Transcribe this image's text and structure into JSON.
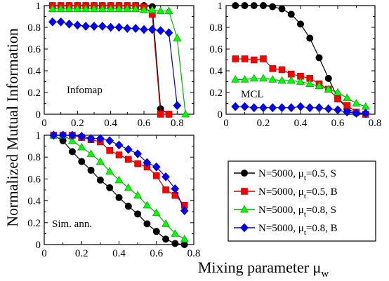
{
  "figure": {
    "ylabel": "Normalized Mutual Information",
    "xlabel_main": "Mixing parameter μ",
    "xlabel_sub": "w"
  },
  "colors": {
    "S1": "#000000",
    "B1": "#ff0000",
    "S2": "#00ff00",
    "B2": "#0000ff",
    "B1_stroke": "#cc0000",
    "S2_stroke": "#00b000",
    "B2_stroke": "#0000cc"
  },
  "legend": [
    {
      "id": "S1",
      "prefix": "N=5000,  μ",
      "sub": "t",
      "suffix": "=0.5, S",
      "marker": "circle"
    },
    {
      "id": "B1",
      "prefix": "N=5000,  μ",
      "sub": "t",
      "suffix": "=0.5, B",
      "marker": "square"
    },
    {
      "id": "S2",
      "prefix": "N=5000,  μ",
      "sub": "t",
      "suffix": "=0.8, S",
      "marker": "triangle"
    },
    {
      "id": "B2",
      "prefix": "N=5000,  μ",
      "sub": "t",
      "suffix": "=0.8, B",
      "marker": "diamond"
    }
  ],
  "chart_data": [
    {
      "type": "line",
      "panel": "infomap",
      "annotation": "Infomap",
      "xlim": [
        0,
        0.9
      ],
      "ylim": [
        0,
        1
      ],
      "xticks": [
        "0",
        "0.2",
        "0.4",
        "0.6",
        "0.8"
      ],
      "xtick_values": [
        0,
        0.2,
        0.4,
        0.6,
        0.8
      ],
      "yticks": [
        "0",
        "0.2",
        "0.4",
        "0.6",
        "0.8",
        "1"
      ],
      "ytick_values": [
        0,
        0.2,
        0.4,
        0.6,
        0.8,
        1
      ],
      "series": [
        {
          "id": "S1",
          "x": [
            0.05,
            0.1,
            0.15,
            0.2,
            0.25,
            0.3,
            0.35,
            0.4,
            0.45,
            0.5,
            0.55,
            0.6,
            0.65,
            0.7,
            0.75
          ],
          "y": [
            1,
            1,
            1,
            1,
            1,
            1,
            1,
            1,
            1,
            1,
            1,
            1,
            0.99,
            0.05,
            0.0
          ]
        },
        {
          "id": "B1",
          "x": [
            0.05,
            0.1,
            0.15,
            0.2,
            0.25,
            0.3,
            0.35,
            0.4,
            0.45,
            0.5,
            0.55,
            0.6,
            0.65,
            0.7,
            0.75
          ],
          "y": [
            1,
            1,
            1,
            1,
            1,
            1,
            1,
            1,
            1,
            1,
            1,
            0.99,
            0.92,
            0.0,
            0.0
          ]
        },
        {
          "id": "S2",
          "x": [
            0.05,
            0.1,
            0.15,
            0.2,
            0.25,
            0.3,
            0.35,
            0.4,
            0.45,
            0.5,
            0.55,
            0.6,
            0.65,
            0.7,
            0.75,
            0.8,
            0.85
          ],
          "y": [
            0.97,
            0.97,
            0.97,
            0.97,
            0.97,
            0.97,
            0.97,
            0.97,
            0.97,
            0.97,
            0.97,
            0.96,
            0.96,
            0.95,
            0.95,
            0.7,
            0.0
          ]
        },
        {
          "id": "B2",
          "x": [
            0.05,
            0.1,
            0.15,
            0.2,
            0.25,
            0.3,
            0.35,
            0.4,
            0.45,
            0.5,
            0.55,
            0.6,
            0.65,
            0.7,
            0.75,
            0.8
          ],
          "y": [
            0.85,
            0.85,
            0.83,
            0.82,
            0.81,
            0.81,
            0.81,
            0.8,
            0.8,
            0.79,
            0.79,
            0.78,
            0.78,
            0.77,
            0.75,
            0.08
          ]
        }
      ]
    },
    {
      "type": "line",
      "panel": "mcl",
      "annotation": "MCL",
      "xlim": [
        0,
        0.8
      ],
      "ylim": [
        0,
        1
      ],
      "xticks": [
        "0",
        "0.2",
        "0.4",
        "0.6",
        "0.8"
      ],
      "xtick_values": [
        0,
        0.2,
        0.4,
        0.6,
        0.8
      ],
      "yticks": [
        "0",
        "0.2",
        "0.4",
        "0.6",
        "0.8",
        "1"
      ],
      "ytick_values": [
        0,
        0.2,
        0.4,
        0.6,
        0.8,
        1
      ],
      "series": [
        {
          "id": "S1",
          "x": [
            0.05,
            0.1,
            0.15,
            0.2,
            0.25,
            0.3,
            0.35,
            0.4,
            0.45,
            0.5,
            0.55,
            0.6,
            0.65,
            0.7,
            0.75
          ],
          "y": [
            1,
            1,
            1,
            1,
            0.99,
            0.97,
            0.92,
            0.83,
            0.7,
            0.52,
            0.33,
            0.15,
            0.05,
            0.01,
            0.0
          ]
        },
        {
          "id": "B1",
          "x": [
            0.05,
            0.1,
            0.15,
            0.2,
            0.25,
            0.3,
            0.35,
            0.4,
            0.45,
            0.5,
            0.55,
            0.6,
            0.65,
            0.7,
            0.75
          ],
          "y": [
            0.51,
            0.51,
            0.5,
            0.51,
            0.42,
            0.41,
            0.37,
            0.35,
            0.33,
            0.28,
            0.23,
            0.14,
            0.08,
            0.02,
            0.0
          ]
        },
        {
          "id": "S2",
          "x": [
            0.05,
            0.1,
            0.15,
            0.2,
            0.25,
            0.3,
            0.35,
            0.4,
            0.45,
            0.5,
            0.55,
            0.6,
            0.65,
            0.7,
            0.75
          ],
          "y": [
            0.32,
            0.32,
            0.33,
            0.33,
            0.32,
            0.31,
            0.31,
            0.3,
            0.28,
            0.26,
            0.23,
            0.2,
            0.15,
            0.1,
            0.07
          ]
        },
        {
          "id": "B2",
          "x": [
            0.05,
            0.1,
            0.15,
            0.2,
            0.25,
            0.3,
            0.35,
            0.4,
            0.45,
            0.5,
            0.55,
            0.6,
            0.65,
            0.7,
            0.75
          ],
          "y": [
            0.07,
            0.07,
            0.06,
            0.06,
            0.06,
            0.06,
            0.06,
            0.07,
            0.06,
            0.06,
            0.05,
            0.04,
            0.02,
            0.01,
            0.01
          ]
        }
      ]
    },
    {
      "type": "line",
      "panel": "simann",
      "annotation": "Sim. ann.",
      "xlim": [
        0,
        0.8
      ],
      "ylim": [
        0,
        1
      ],
      "xticks": [
        "0",
        "0.2",
        "0.4",
        "0.6",
        "0.8"
      ],
      "xtick_values": [
        0,
        0.2,
        0.4,
        0.6,
        0.8
      ],
      "yticks": [
        "0",
        "0.2",
        "0.4",
        "0.6",
        "0.8",
        "1"
      ],
      "ytick_values": [
        0,
        0.2,
        0.4,
        0.6,
        0.8,
        1
      ],
      "series": [
        {
          "id": "S1",
          "x": [
            0.05,
            0.1,
            0.15,
            0.2,
            0.25,
            0.3,
            0.35,
            0.4,
            0.45,
            0.5,
            0.55,
            0.6,
            0.65,
            0.7,
            0.75
          ],
          "y": [
            1,
            0.95,
            0.85,
            0.76,
            0.68,
            0.59,
            0.52,
            0.43,
            0.35,
            0.28,
            0.19,
            0.12,
            0.05,
            0.01,
            0.0
          ]
        },
        {
          "id": "B1",
          "x": [
            0.05,
            0.1,
            0.15,
            0.2,
            0.25,
            0.3,
            0.35,
            0.4,
            0.45,
            0.5,
            0.55,
            0.6,
            0.65,
            0.7,
            0.75
          ],
          "y": [
            1,
            1,
            1,
            0.98,
            0.96,
            0.94,
            0.86,
            0.82,
            0.78,
            0.74,
            0.71,
            0.63,
            0.5,
            0.45,
            0.36
          ]
        },
        {
          "id": "S2",
          "x": [
            0.05,
            0.1,
            0.15,
            0.2,
            0.25,
            0.3,
            0.35,
            0.4,
            0.45,
            0.5,
            0.55,
            0.6,
            0.65,
            0.7,
            0.75
          ],
          "y": [
            1,
            1,
            0.95,
            0.89,
            0.83,
            0.76,
            0.67,
            0.59,
            0.52,
            0.45,
            0.36,
            0.29,
            0.19,
            0.1,
            0.05
          ]
        },
        {
          "id": "B2",
          "x": [
            0.05,
            0.1,
            0.15,
            0.2,
            0.25,
            0.3,
            0.35,
            0.4,
            0.45,
            0.5,
            0.55,
            0.6,
            0.65,
            0.7,
            0.75
          ],
          "y": [
            1,
            1,
            1,
            0.99,
            0.97,
            0.97,
            0.95,
            0.91,
            0.87,
            0.83,
            0.75,
            0.71,
            0.62,
            0.51,
            0.31
          ]
        }
      ]
    }
  ]
}
